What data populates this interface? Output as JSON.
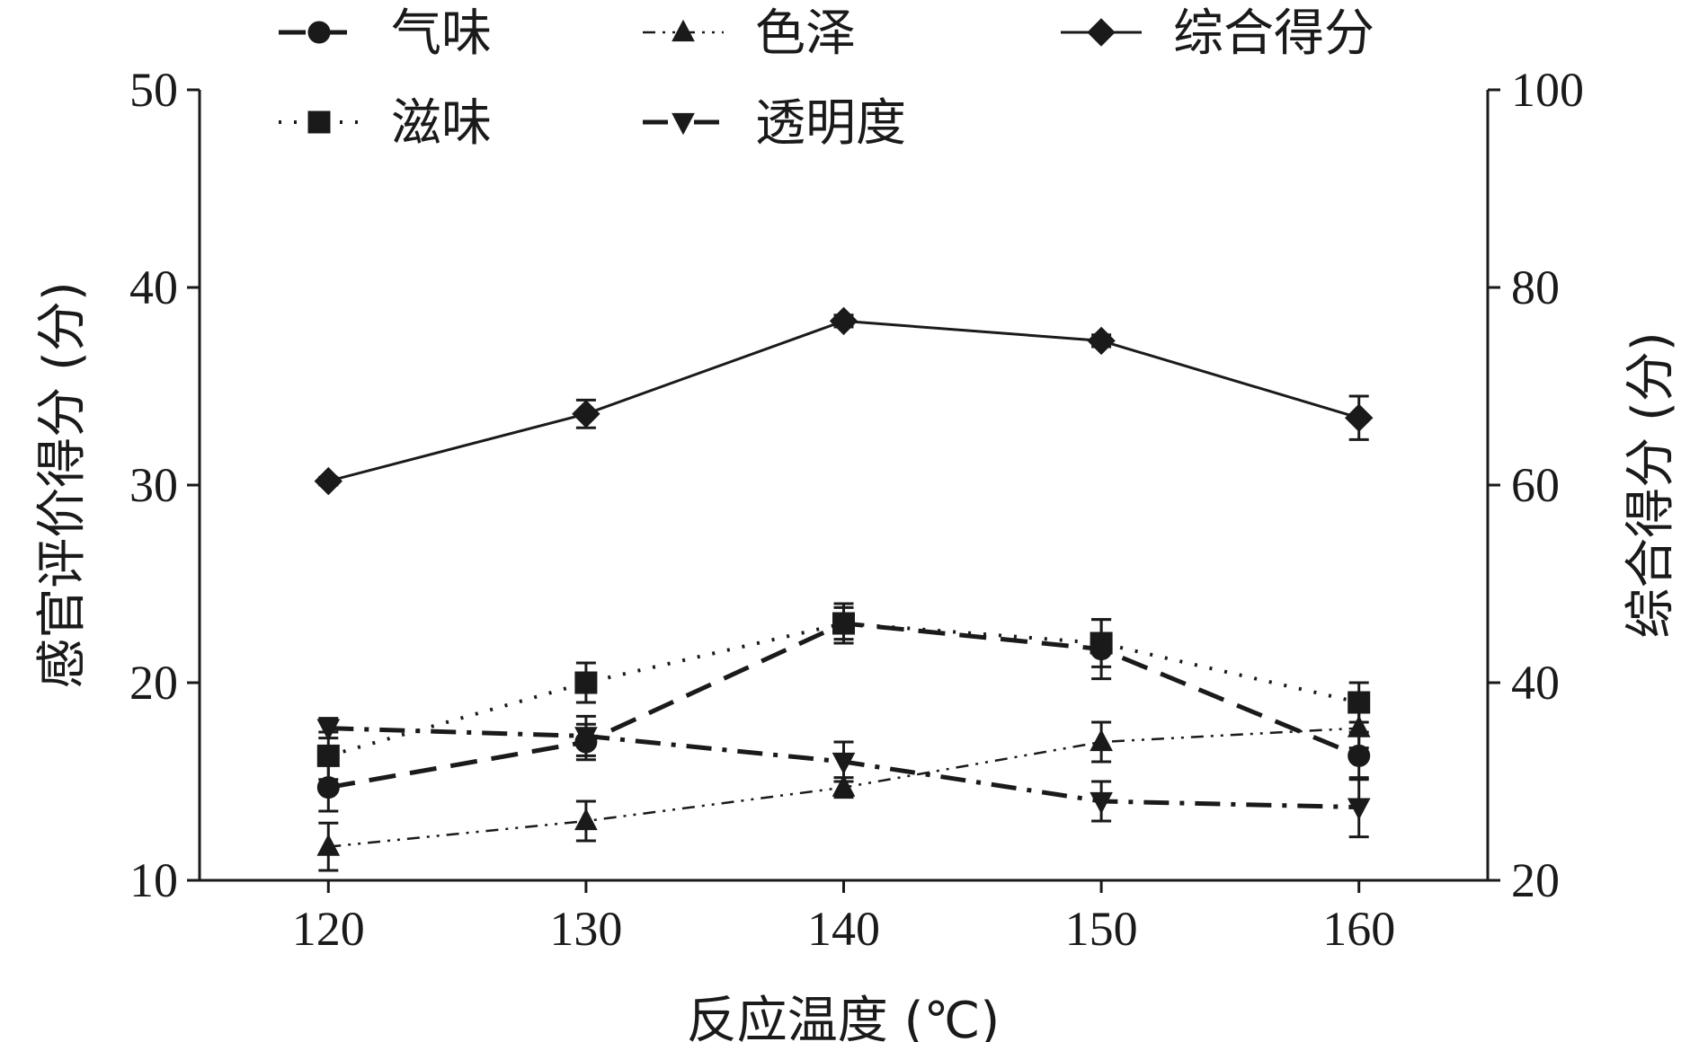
{
  "chart_data": {
    "type": "line",
    "x": [
      120,
      130,
      140,
      150,
      160
    ],
    "xlabel": "反应温度 (℃)",
    "ylabel_left": "感官评价得分 (分)",
    "ylabel_right": "综合得分 (分)",
    "ylim_left": [
      10,
      50
    ],
    "ylim_right": [
      20,
      100
    ],
    "xlim": [
      115,
      165
    ],
    "yticks_left": [
      10,
      20,
      30,
      40,
      50
    ],
    "yticks_right": [
      20,
      40,
      60,
      80,
      100
    ],
    "xticks": [
      120,
      130,
      140,
      150,
      160
    ],
    "grid": false,
    "legend_placement": "top",
    "series": [
      {
        "name": "气味",
        "axis": "left",
        "marker": "circle",
        "dash": "long-dash",
        "values": [
          14.7,
          17.0,
          23.0,
          21.7,
          16.3
        ],
        "errors": [
          1.2,
          0.9,
          0.8,
          1.5,
          1.2
        ]
      },
      {
        "name": "色泽",
        "axis": "left",
        "marker": "triangle-up",
        "dash": "dash-dot-dot",
        "values": [
          11.7,
          13.0,
          14.7,
          17.0,
          17.7
        ],
        "errors": [
          1.2,
          1.0,
          0.5,
          1.0,
          1.0
        ]
      },
      {
        "name": "综合得分",
        "axis": "right",
        "marker": "diamond",
        "dash": "solid",
        "values": [
          60.4,
          67.2,
          76.6,
          74.6,
          66.8
        ],
        "errors": [
          0.4,
          1.4,
          0.6,
          0.6,
          2.2
        ]
      },
      {
        "name": "滋味",
        "axis": "left",
        "marker": "square",
        "dash": "dotted",
        "values": [
          16.3,
          20.0,
          23.0,
          22.0,
          19.0
        ],
        "errors": [
          1.2,
          1.0,
          1.0,
          1.2,
          1.0
        ]
      },
      {
        "name": "透明度",
        "axis": "left",
        "marker": "triangle-down",
        "dash": "dash-dot",
        "values": [
          17.7,
          17.3,
          16.0,
          14.0,
          13.7
        ],
        "errors": [
          0.5,
          1.0,
          1.0,
          1.0,
          1.5
        ]
      }
    ]
  }
}
